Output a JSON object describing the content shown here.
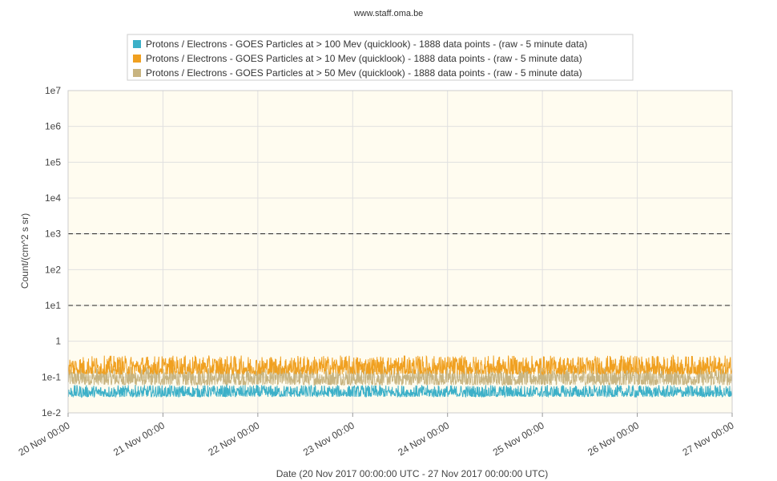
{
  "header": {
    "site": "www.staff.oma.be"
  },
  "chart_data": {
    "type": "line",
    "title": "",
    "xlabel": "Date (20 Nov 2017 00:00:00 UTC - 27 Nov 2017 00:00:00 UTC)",
    "ylabel": "Count/(cm^2 s sr)",
    "yscale": "log",
    "ylim": [
      0.01,
      10000000
    ],
    "xlim": [
      "2017-11-20 00:00",
      "2017-11-27 00:00"
    ],
    "x_tick_labels": [
      "20 Nov 00:00",
      "21 Nov 00:00",
      "22 Nov 00:00",
      "23 Nov 00:00",
      "24 Nov 00:00",
      "25 Nov 00:00",
      "26 Nov 00:00",
      "27 Nov 00:00"
    ],
    "y_tick_labels": [
      "1e-2",
      "1e-1",
      "1",
      "1e1",
      "1e2",
      "1e3",
      "1e4",
      "1e5",
      "1e6",
      "1e7"
    ],
    "grid": true,
    "legend_position": "top-center",
    "threshold_lines": [
      10,
      1000
    ],
    "plot_background": "#fffcf0",
    "series": [
      {
        "name": "Protons / Electrons - GOES Particles at > 100 Mev (quicklook) - 1888 data points -  (raw - 5 minute data)",
        "color": "#3cb0c8",
        "points": 1888,
        "typical_range": [
          0.028,
          0.06
        ]
      },
      {
        "name": "Protons / Electrons - GOES Particles at > 10 Mev (quicklook) - 1888 data points -  (raw - 5 minute data)",
        "color": "#f0a020",
        "points": 1888,
        "typical_range": [
          0.12,
          0.4
        ]
      },
      {
        "name": "Protons / Electrons - GOES Particles at > 50 Mev (quicklook) - 1888 data points -  (raw - 5 minute data)",
        "color": "#c8b480",
        "points": 1888,
        "typical_range": [
          0.06,
          0.2
        ]
      }
    ]
  }
}
